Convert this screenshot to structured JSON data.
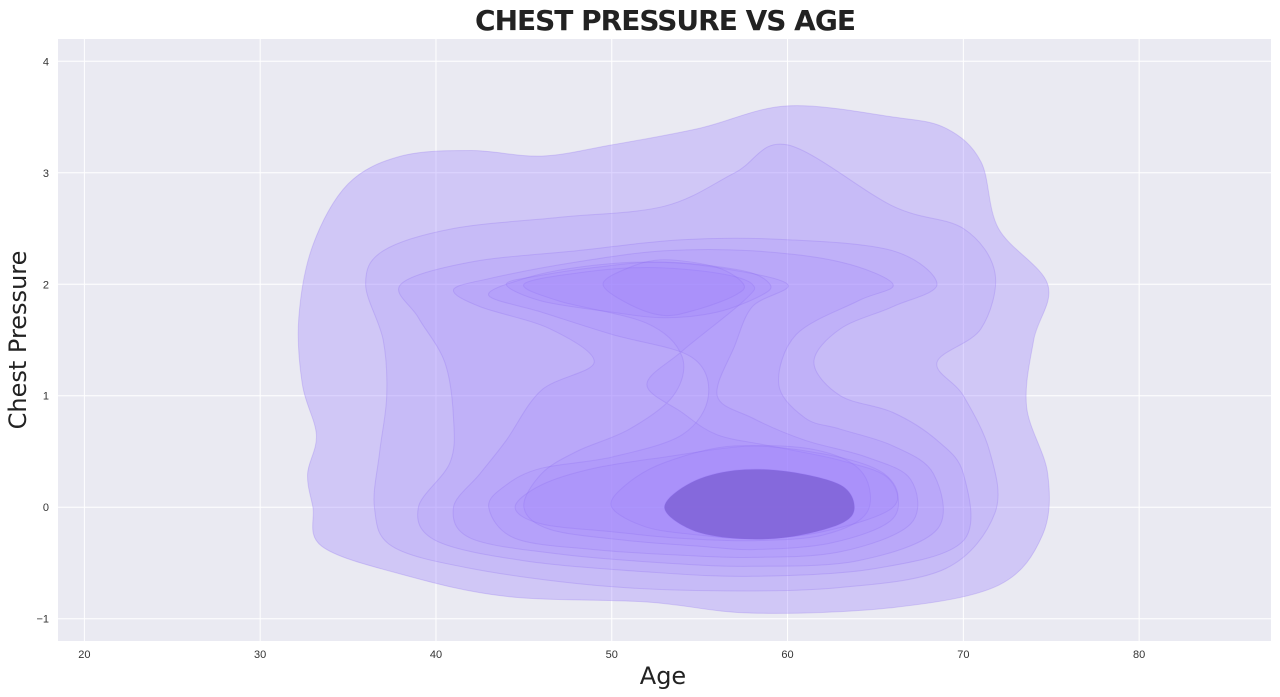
{
  "chart_data": {
    "type": "kde_contour",
    "title": "CHEST PRESSURE VS AGE",
    "xlabel": "Age",
    "ylabel": "Chest Pressure",
    "xlim": [
      18.5,
      87.5
    ],
    "ylim": [
      -1.2,
      4.2
    ],
    "xticks": [
      20,
      30,
      40,
      50,
      60,
      70,
      80
    ],
    "yticks": [
      -1,
      0,
      1,
      2,
      3,
      4
    ],
    "grid": true,
    "colors": {
      "background": "#eaeaf2",
      "grid": "#ffffff",
      "fill": "#9b7fff",
      "core": "#7f62d6"
    },
    "density_peaks": [
      {
        "x": 58,
        "y": 0,
        "label": "primary mode"
      },
      {
        "x": 53,
        "y": 2,
        "label": "secondary mode"
      }
    ],
    "contour_levels": [
      {
        "level": 1,
        "points": [
          [
            33,
            0
          ],
          [
            33.5,
            -0.35
          ],
          [
            38,
            -0.6
          ],
          [
            44,
            -0.8
          ],
          [
            52,
            -0.85
          ],
          [
            58,
            -0.95
          ],
          [
            66,
            -0.9
          ],
          [
            72,
            -0.7
          ],
          [
            74.5,
            -0.25
          ],
          [
            74.8,
            0.3
          ],
          [
            73.6,
            0.9
          ],
          [
            74,
            1.5
          ],
          [
            74.8,
            2
          ],
          [
            72,
            2.5
          ],
          [
            71,
            3.1
          ],
          [
            69,
            3.4
          ],
          [
            66,
            3.5
          ],
          [
            60,
            3.6
          ],
          [
            55,
            3.4
          ],
          [
            50,
            3.25
          ],
          [
            46,
            3.15
          ],
          [
            42,
            3.2
          ],
          [
            38,
            3.15
          ],
          [
            35,
            2.9
          ],
          [
            33,
            2.35
          ],
          [
            32.2,
            1.7
          ],
          [
            32.4,
            1.1
          ],
          [
            33.2,
            0.65
          ],
          [
            32.7,
            0.3
          ]
        ]
      },
      {
        "level": 2,
        "points": [
          [
            36.5,
            0
          ],
          [
            37.5,
            -0.35
          ],
          [
            42,
            -0.55
          ],
          [
            49,
            -0.7
          ],
          [
            56,
            -0.75
          ],
          [
            63,
            -0.72
          ],
          [
            69,
            -0.55
          ],
          [
            71.8,
            -0.05
          ],
          [
            71.5,
            0.5
          ],
          [
            70,
            1
          ],
          [
            68.5,
            1.3
          ],
          [
            71,
            1.6
          ],
          [
            71.8,
            2.1
          ],
          [
            70,
            2.5
          ],
          [
            66,
            2.7
          ],
          [
            60,
            3.25
          ],
          [
            57,
            3
          ],
          [
            53,
            2.7
          ],
          [
            47,
            2.6
          ],
          [
            41,
            2.5
          ],
          [
            37,
            2.3
          ],
          [
            36,
            2
          ],
          [
            37,
            1.5
          ],
          [
            37.2,
            1
          ],
          [
            36.8,
            0.5
          ]
        ]
      },
      {
        "level": 3,
        "points": [
          [
            39,
            0
          ],
          [
            40,
            -0.3
          ],
          [
            45,
            -0.48
          ],
          [
            52,
            -0.58
          ],
          [
            58,
            -0.62
          ],
          [
            65,
            -0.55
          ],
          [
            70,
            -0.3
          ],
          [
            70,
            0.3
          ],
          [
            68.5,
            0.6
          ],
          [
            66,
            0.85
          ],
          [
            63,
            1
          ],
          [
            61.5,
            1.3
          ],
          [
            63,
            1.6
          ],
          [
            66,
            1.8
          ],
          [
            68.5,
            2
          ],
          [
            66,
            2.3
          ],
          [
            60,
            2.4
          ],
          [
            54,
            2.4
          ],
          [
            48,
            2.3
          ],
          [
            42,
            2.2
          ],
          [
            38,
            2
          ],
          [
            39,
            1.7
          ],
          [
            40.5,
            1.3
          ],
          [
            41,
            0.8
          ],
          [
            40.8,
            0.4
          ]
        ]
      },
      {
        "level": 4,
        "points": [
          [
            41,
            0
          ],
          [
            42,
            -0.28
          ],
          [
            47,
            -0.42
          ],
          [
            53,
            -0.5
          ],
          [
            58,
            -0.53
          ],
          [
            64,
            -0.48
          ],
          [
            68.5,
            -0.2
          ],
          [
            68.3,
            0.3
          ],
          [
            66,
            0.55
          ],
          [
            63,
            0.7
          ],
          [
            61,
            0.8
          ],
          [
            59.5,
            1.1
          ],
          [
            60.5,
            1.55
          ],
          [
            64,
            1.85
          ],
          [
            66,
            2
          ],
          [
            63,
            2.2
          ],
          [
            58,
            2.3
          ],
          [
            53,
            2.3
          ],
          [
            48,
            2.2
          ],
          [
            43,
            2.05
          ],
          [
            41,
            1.95
          ],
          [
            42.5,
            1.8
          ],
          [
            46.5,
            1.6
          ],
          [
            49,
            1.3
          ],
          [
            46,
            1.05
          ],
          [
            44,
            0.6
          ],
          [
            42.5,
            0.3
          ]
        ]
      },
      {
        "level": 5,
        "points": [
          [
            43,
            0
          ],
          [
            44.5,
            -0.28
          ],
          [
            49,
            -0.38
          ],
          [
            54,
            -0.43
          ],
          [
            58,
            -0.45
          ],
          [
            63,
            -0.4
          ],
          [
            67,
            -0.15
          ],
          [
            67,
            0.25
          ],
          [
            64.5,
            0.45
          ],
          [
            61,
            0.6
          ],
          [
            58,
            0.8
          ],
          [
            56,
            1
          ],
          [
            57,
            1.45
          ],
          [
            58,
            1.8
          ],
          [
            60,
            2
          ],
          [
            56,
            2.15
          ],
          [
            52,
            2.2
          ],
          [
            48,
            2.15
          ],
          [
            45,
            2.05
          ],
          [
            43,
            1.9
          ],
          [
            46,
            1.75
          ],
          [
            50,
            1.55
          ],
          [
            54.5,
            1.35
          ],
          [
            55.5,
            1
          ],
          [
            54,
            0.65
          ],
          [
            50,
            0.45
          ],
          [
            46,
            0.35
          ],
          [
            44,
            0.2
          ]
        ]
      },
      {
        "level": 6,
        "points": [
          [
            45,
            0
          ],
          [
            46.5,
            -0.2
          ],
          [
            51,
            -0.3
          ],
          [
            55,
            -0.35
          ],
          [
            58,
            -0.38
          ],
          [
            62.5,
            -0.32
          ],
          [
            66,
            -0.1
          ],
          [
            65.8,
            0.25
          ],
          [
            63,
            0.42
          ],
          [
            59,
            0.55
          ],
          [
            56,
            0.65
          ],
          [
            54,
            0.85
          ],
          [
            52,
            1.1
          ],
          [
            54,
            1.4
          ],
          [
            57.5,
            1.85
          ],
          [
            58,
            2
          ],
          [
            56,
            2.1
          ],
          [
            52,
            2.15
          ],
          [
            48,
            2.1
          ],
          [
            45,
            2
          ],
          [
            47,
            1.85
          ],
          [
            52,
            1.65
          ],
          [
            54,
            1.35
          ],
          [
            53.5,
            1
          ],
          [
            51,
            0.7
          ],
          [
            48,
            0.5
          ],
          [
            46,
            0.3
          ]
        ]
      },
      {
        "level": 7,
        "points": [
          [
            44.5,
            0
          ],
          [
            46,
            -0.15
          ],
          [
            50,
            -0.22
          ],
          [
            54,
            -0.28
          ],
          [
            58,
            -0.3
          ],
          [
            62,
            -0.25
          ],
          [
            64.5,
            -0.05
          ],
          [
            64.3,
            0.3
          ],
          [
            62,
            0.5
          ],
          [
            58,
            0.55
          ],
          [
            53,
            0.45
          ],
          [
            49,
            0.35
          ],
          [
            46,
            0.2
          ]
        ]
      },
      {
        "level": 8,
        "points": [
          [
            50,
            0
          ],
          [
            52,
            -0.18
          ],
          [
            55,
            -0.25
          ],
          [
            58,
            -0.28
          ],
          [
            62,
            -0.22
          ],
          [
            66,
            0
          ],
          [
            65.5,
            0.3
          ],
          [
            62,
            0.48
          ],
          [
            57,
            0.55
          ],
          [
            53,
            0.4
          ],
          [
            50.8,
            0.2
          ]
        ]
      },
      {
        "level": 9,
        "points": [
          [
            53,
            0
          ],
          [
            54.5,
            -0.2
          ],
          [
            57,
            -0.28
          ],
          [
            60,
            -0.27
          ],
          [
            63,
            -0.15
          ],
          [
            63.8,
            0
          ],
          [
            63,
            0.2
          ],
          [
            60,
            0.32
          ],
          [
            57,
            0.33
          ],
          [
            54.5,
            0.22
          ]
        ]
      },
      {
        "level": 10,
        "points": [
          [
            44,
            2
          ],
          [
            46,
            1.85
          ],
          [
            50,
            1.75
          ],
          [
            53,
            1.7
          ],
          [
            56,
            1.75
          ],
          [
            58.5,
            1.9
          ],
          [
            59,
            2
          ],
          [
            57.5,
            2.12
          ],
          [
            53,
            2.2
          ],
          [
            49,
            2.15
          ],
          [
            46,
            2.08
          ]
        ]
      },
      {
        "level": 11,
        "points": [
          [
            49.5,
            2
          ],
          [
            51,
            1.82
          ],
          [
            53,
            1.72
          ],
          [
            55,
            1.78
          ],
          [
            57,
            1.9
          ],
          [
            57.5,
            2
          ],
          [
            56,
            2.15
          ],
          [
            53,
            2.22
          ],
          [
            51,
            2.15
          ]
        ]
      }
    ]
  }
}
